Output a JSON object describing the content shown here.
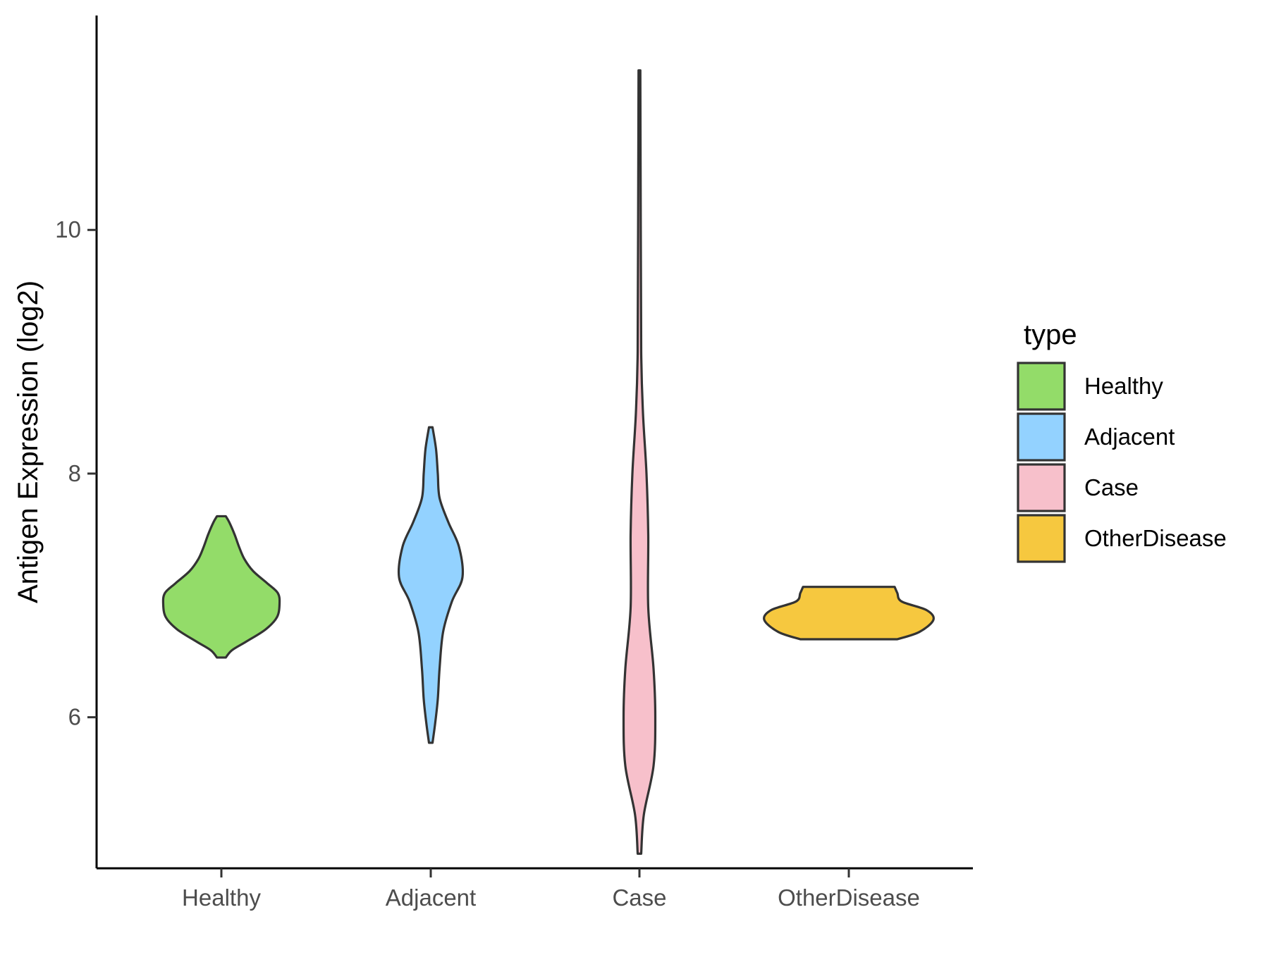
{
  "chart_data": {
    "type": "violin",
    "title": "",
    "xlabel": "",
    "ylabel": "Antigen Expression (log2)",
    "ylim": [
      4.76,
      11.76
    ],
    "yticks": [
      6,
      8,
      10
    ],
    "categories": [
      "Healthy",
      "Adjacent",
      "Case",
      "OtherDisease"
    ],
    "legend": {
      "title": "type",
      "position": "right",
      "entries": [
        {
          "label": "Healthy",
          "color": "#93DC69"
        },
        {
          "label": "Adjacent",
          "color": "#93D2FF"
        },
        {
          "label": "Case",
          "color": "#F7C0CB"
        },
        {
          "label": "OtherDisease",
          "color": "#F6C83F"
        }
      ]
    },
    "series": [
      {
        "name": "Healthy",
        "color": "#93DC69",
        "y_range": [
          6.49,
          7.65
        ],
        "density_profile": [
          [
            6.49,
            0.05
          ],
          [
            6.55,
            0.12
          ],
          [
            6.62,
            0.28
          ],
          [
            6.72,
            0.5
          ],
          [
            6.82,
            0.63
          ],
          [
            6.93,
            0.66
          ],
          [
            7.02,
            0.64
          ],
          [
            7.1,
            0.52
          ],
          [
            7.2,
            0.36
          ],
          [
            7.3,
            0.26
          ],
          [
            7.4,
            0.2
          ],
          [
            7.5,
            0.15
          ],
          [
            7.6,
            0.09
          ],
          [
            7.65,
            0.05
          ]
        ]
      },
      {
        "name": "Adjacent",
        "color": "#93D2FF",
        "y_range": [
          5.79,
          8.38
        ],
        "density_profile": [
          [
            5.79,
            0.02
          ],
          [
            5.95,
            0.05
          ],
          [
            6.15,
            0.08
          ],
          [
            6.4,
            0.1
          ],
          [
            6.7,
            0.14
          ],
          [
            6.95,
            0.24
          ],
          [
            7.15,
            0.36
          ],
          [
            7.4,
            0.32
          ],
          [
            7.6,
            0.2
          ],
          [
            7.8,
            0.1
          ],
          [
            8.0,
            0.08
          ],
          [
            8.2,
            0.06
          ],
          [
            8.38,
            0.02
          ]
        ]
      },
      {
        "name": "Case",
        "color": "#F7C0CB",
        "y_range": [
          4.88,
          11.31
        ],
        "density_profile": [
          [
            4.88,
            0.02
          ],
          [
            5.2,
            0.05
          ],
          [
            5.6,
            0.16
          ],
          [
            6.0,
            0.18
          ],
          [
            6.4,
            0.16
          ],
          [
            6.9,
            0.1
          ],
          [
            7.5,
            0.1
          ],
          [
            8.0,
            0.08
          ],
          [
            8.5,
            0.04
          ],
          [
            9.0,
            0.02
          ],
          [
            10.0,
            0.015
          ],
          [
            11.31,
            0.01
          ]
        ]
      },
      {
        "name": "OtherDisease",
        "color": "#F6C83F",
        "y_range": [
          6.64,
          7.07
        ],
        "density_profile": [
          [
            6.64,
            0.55
          ],
          [
            6.7,
            0.8
          ],
          [
            6.8,
            0.96
          ],
          [
            6.88,
            0.88
          ],
          [
            6.95,
            0.6
          ],
          [
            7.02,
            0.55
          ],
          [
            7.07,
            0.52
          ]
        ]
      }
    ]
  }
}
